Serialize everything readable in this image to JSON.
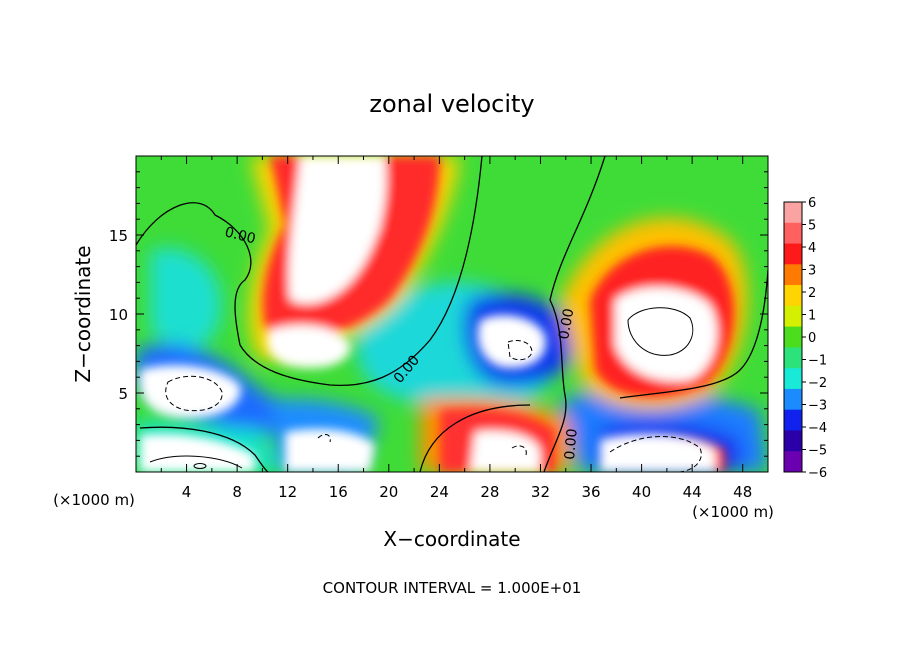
{
  "chart_data": {
    "type": "heatmap",
    "title": "zonal velocity",
    "xlabel": "X−coordinate",
    "ylabel": "Z−coordinate",
    "x_unit": "(×1000 m)",
    "y_unit": "(×1000 m)",
    "xlim": [
      0,
      50
    ],
    "ylim": [
      0,
      20
    ],
    "x_ticks": [
      "4",
      "8",
      "12",
      "16",
      "20",
      "24",
      "28",
      "32",
      "36",
      "40",
      "44",
      "48"
    ],
    "y_ticks": [
      "5",
      "10",
      "15"
    ],
    "footer": "CONTOUR INTERVAL = 1.000E+01",
    "colorbar": {
      "ticks": [
        "6",
        "5",
        "4",
        "3",
        "2",
        "1",
        "0",
        "−1",
        "−2",
        "−3",
        "−4",
        "−5",
        "−6"
      ],
      "range": [
        -6,
        6
      ],
      "colors": [
        "#f9a3a3",
        "#ff6060",
        "#ff1a1a",
        "#ff7a00",
        "#ffd400",
        "#d4ef00",
        "#4cdd1e",
        "#2ce27a",
        "#19ead7",
        "#1a8cff",
        "#1222ee",
        "#2b00a8",
        "#6b00b0"
      ]
    },
    "contour_labels": [
      "0.00",
      "0.00",
      "0.00",
      "0.00"
    ]
  }
}
